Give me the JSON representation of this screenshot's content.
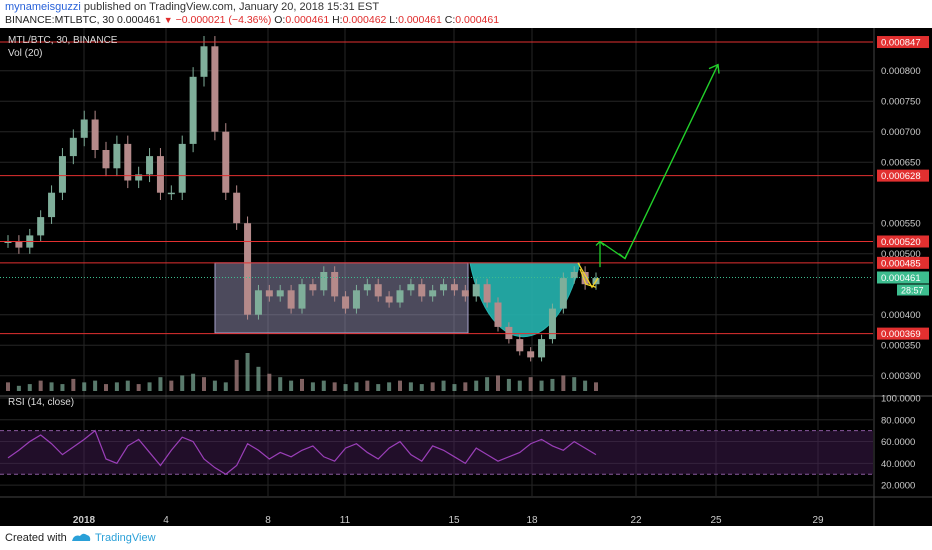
{
  "header": {
    "username": "mynameisguzzi",
    "published": "published on TradingView.com, January 20, 2018 15:31 EST",
    "symbol": "BINANCE:MTLBTC, 30",
    "last": "0.000461",
    "change": "−0.000021 (−4.36%)",
    "o_label": "O:",
    "o": "0.000461",
    "h_label": "H:",
    "h": "0.000462",
    "l_label": "L:",
    "l": "0.000461",
    "c_label": "C:",
    "c": "0.000461"
  },
  "panes": {
    "main_title": "MTL/BTC, 30, BINANCE",
    "vol_label": "Vol (20)",
    "rsi_label": "RSI (14, close)"
  },
  "footer": {
    "created_with": "Created with",
    "brand": "TradingView"
  },
  "colors": {
    "background": "#000000",
    "up": "#7fae9a",
    "down": "#b58a8a",
    "level_line": "#e23030",
    "range_box": "#a8a3cc",
    "cup_fill": "#26b5b0",
    "arrow": "#22d02a",
    "flag": "#f2d52a",
    "rsi": "#9a3fb8"
  },
  "chart_data": [
    {
      "type": "line",
      "title": "MTL/BTC, 30, BINANCE",
      "xlabel": "",
      "ylabel": "",
      "x_ticks": [
        "2018",
        "4",
        "8",
        "11",
        "15",
        "18",
        "22",
        "25",
        "29"
      ],
      "ylim": [
        0.00027,
        0.00087
      ],
      "y_ticks": [
        "0.000800",
        "0.000750",
        "0.000700",
        "0.000650",
        "0.000550",
        "0.000500",
        "0.000400",
        "0.000350",
        "0.000300"
      ],
      "series": [
        {
          "values": [
            0.00052,
            0.00051,
            0.00053,
            0.00056,
            0.0006,
            0.00066,
            0.00069,
            0.00072,
            0.00067,
            0.00064,
            0.00068,
            0.00062,
            0.00063,
            0.00066,
            0.0006,
            0.0006,
            0.00068,
            0.00079,
            0.00084,
            0.0007,
            0.0006,
            0.00055,
            0.0004,
            0.00044,
            0.00043,
            0.00044,
            0.00041,
            0.00045,
            0.00044,
            0.00047,
            0.00043,
            0.00041,
            0.00044,
            0.00045,
            0.00043,
            0.00042,
            0.00044,
            0.00045,
            0.00043,
            0.00044,
            0.00045,
            0.00044,
            0.00043,
            0.00045,
            0.00042,
            0.00038,
            0.00036,
            0.00034,
            0.00033,
            0.00036,
            0.00041,
            0.00046,
            0.00047,
            0.00045,
            0.00046
          ]
        }
      ],
      "levels": [
        {
          "label": "0.000847",
          "y": 0.000847
        },
        {
          "label": "0.000628",
          "y": 0.000628
        },
        {
          "label": "0.000520",
          "y": 0.00052
        },
        {
          "label": "0.000485",
          "y": 0.000485
        },
        {
          "label": "0.000369",
          "y": 0.000369
        }
      ],
      "last_price": {
        "label": "0.000461",
        "timer": "28:57",
        "y": 0.000461
      },
      "annotations": [
        {
          "type": "rectangle",
          "desc": "range",
          "y_top": 0.000485,
          "y_bottom": 0.00037
        },
        {
          "type": "cup",
          "y_top": 0.000485,
          "y_bottom": 0.00034
        },
        {
          "type": "arrow",
          "from_y": 0.00049,
          "to_y": 0.0008
        }
      ]
    },
    {
      "type": "bar",
      "title": "Vol (20)",
      "series": [
        {
          "values": [
            0.5,
            0.3,
            0.4,
            0.6,
            0.5,
            0.4,
            0.7,
            0.5,
            0.6,
            0.4,
            0.5,
            0.6,
            0.4,
            0.5,
            0.8,
            0.6,
            0.9,
            1.0,
            0.8,
            0.6,
            0.5,
            1.8,
            2.2,
            1.4,
            1.0,
            0.8,
            0.6,
            0.7,
            0.5,
            0.6,
            0.5,
            0.4,
            0.5,
            0.6,
            0.4,
            0.5,
            0.6,
            0.5,
            0.4,
            0.5,
            0.6,
            0.4,
            0.5,
            0.6,
            0.8,
            0.9,
            0.7,
            0.6,
            0.8,
            0.6,
            0.7,
            0.9,
            0.8,
            0.6,
            0.5
          ]
        }
      ]
    },
    {
      "type": "line",
      "title": "RSI (14, close)",
      "ylim": [
        10,
        100
      ],
      "y_ticks": [
        "100.0000",
        "80.0000",
        "60.0000",
        "40.0000",
        "20.0000"
      ],
      "bands": [
        30,
        70
      ],
      "series": [
        {
          "values": [
            45,
            52,
            60,
            66,
            58,
            48,
            55,
            62,
            70,
            44,
            40,
            56,
            62,
            50,
            38,
            52,
            64,
            60,
            44,
            36,
            30,
            38,
            58,
            52,
            44,
            50,
            46,
            52,
            56,
            46,
            42,
            54,
            58,
            50,
            44,
            54,
            60,
            48,
            42,
            56,
            52,
            46,
            40,
            54,
            48,
            42,
            46,
            50,
            58,
            62,
            56,
            52,
            60,
            54,
            48
          ]
        }
      ]
    }
  ]
}
